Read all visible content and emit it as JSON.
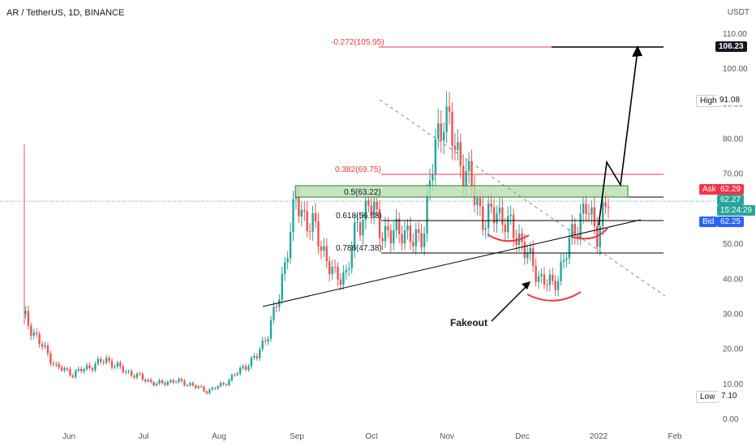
{
  "header": {
    "symbol_line": "AR / TetherUS, 1D, BINANCE",
    "currency": "USDT"
  },
  "colors": {
    "up": "#26a69a",
    "down": "#ef5350",
    "trend": "#000000",
    "fib_red": "#f23645",
    "zone_fill": "#b7dfb0",
    "zone_border": "#2e7d32",
    "dashed": "#8a8a8a",
    "ask": "#f23645",
    "bid": "#2962ff",
    "current": "#26a69a"
  },
  "badges": {
    "ask_label": "Ask",
    "ask_value": "62.29",
    "current_value": "62.27",
    "countdown": "15:24:29",
    "bid_label": "Bid",
    "bid_value": "62.25",
    "high_label": "High",
    "high_value": "91.08",
    "low_label": "Low",
    "low_value": "7.10",
    "target_value": "106.23"
  },
  "chart_data": {
    "type": "candlestick",
    "x_ticks": [
      "Jun",
      "Jul",
      "Aug",
      "Sep",
      "Oct",
      "Nov",
      "Dec",
      "2022",
      "Feb"
    ],
    "y_ticks": [
      "110.00",
      "100.00",
      "90.00",
      "80.00",
      "70.00",
      "60.00",
      "50.00",
      "40.00",
      "30.00",
      "20.00",
      "10.00",
      "0.00"
    ],
    "ylim": [
      0,
      110
    ],
    "fib_levels": [
      {
        "label": "-0.272(105.95)",
        "value": 105.95,
        "color": "red"
      },
      {
        "label": "0.382(69.75)",
        "value": 69.75,
        "color": "red"
      },
      {
        "label": "0.5(63.22)",
        "value": 63.22,
        "color": "black"
      },
      {
        "label": "0.618(56.68)",
        "value": 56.68,
        "color": "black"
      },
      {
        "label": "0.786(47.38)",
        "value": 47.38,
        "color": "black"
      }
    ],
    "annotation": "Fakeout",
    "price_path": [
      {
        "x": 0,
        "v": 30
      },
      {
        "x": 6,
        "v": 22
      },
      {
        "x": 12,
        "v": 15
      },
      {
        "x": 18,
        "v": 13
      },
      {
        "x": 24,
        "v": 15
      },
      {
        "x": 30,
        "v": 17
      },
      {
        "x": 36,
        "v": 14
      },
      {
        "x": 42,
        "v": 12
      },
      {
        "x": 48,
        "v": 10
      },
      {
        "x": 54,
        "v": 11
      },
      {
        "x": 60,
        "v": 10
      },
      {
        "x": 66,
        "v": 8
      },
      {
        "x": 72,
        "v": 10
      },
      {
        "x": 78,
        "v": 14
      },
      {
        "x": 84,
        "v": 18
      },
      {
        "x": 88,
        "v": 25
      },
      {
        "x": 92,
        "v": 35
      },
      {
        "x": 95,
        "v": 50
      },
      {
        "x": 98,
        "v": 62
      },
      {
        "x": 101,
        "v": 58
      },
      {
        "x": 104,
        "v": 55
      },
      {
        "x": 108,
        "v": 48
      },
      {
        "x": 112,
        "v": 40
      },
      {
        "x": 116,
        "v": 42
      },
      {
        "x": 120,
        "v": 55
      },
      {
        "x": 124,
        "v": 62
      },
      {
        "x": 128,
        "v": 55
      },
      {
        "x": 132,
        "v": 52
      },
      {
        "x": 136,
        "v": 55
      },
      {
        "x": 140,
        "v": 50
      },
      {
        "x": 144,
        "v": 55
      },
      {
        "x": 148,
        "v": 78
      },
      {
        "x": 151,
        "v": 88
      },
      {
        "x": 154,
        "v": 80
      },
      {
        "x": 158,
        "v": 72
      },
      {
        "x": 162,
        "v": 64
      },
      {
        "x": 166,
        "v": 56
      },
      {
        "x": 170,
        "v": 60
      },
      {
        "x": 174,
        "v": 55
      },
      {
        "x": 178,
        "v": 52
      },
      {
        "x": 182,
        "v": 45
      },
      {
        "x": 186,
        "v": 40
      },
      {
        "x": 190,
        "v": 38
      },
      {
        "x": 194,
        "v": 45
      },
      {
        "x": 198,
        "v": 55
      },
      {
        "x": 202,
        "v": 60
      },
      {
        "x": 206,
        "v": 54
      },
      {
        "x": 210,
        "v": 62
      }
    ]
  }
}
